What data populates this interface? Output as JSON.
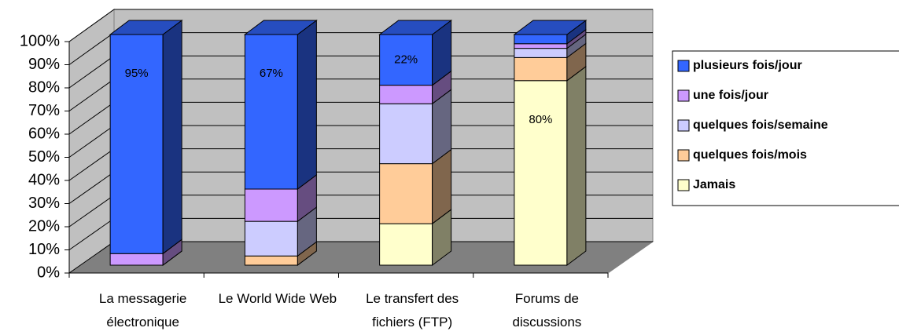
{
  "chart_data": {
    "type": "stacked_bar_3d",
    "categories": [
      "La messagerie électronique",
      "Le World Wide Web",
      "Le transfert des fichiers (FTP)",
      "Forums de discussions"
    ],
    "series": [
      {
        "name": "Jamais",
        "color": "#ffffcc",
        "values": [
          0,
          0,
          18,
          80
        ],
        "value_labels": [
          null,
          null,
          null,
          "80%"
        ]
      },
      {
        "name": "quelques fois/mois",
        "color": "#ffcc99",
        "values": [
          0,
          4,
          26,
          10
        ]
      },
      {
        "name": "quelques fois/semaine",
        "color": "#ccccff",
        "values": [
          0,
          15,
          26,
          4
        ]
      },
      {
        "name": "une fois/jour",
        "color": "#cc99ff",
        "values": [
          5,
          14,
          8,
          2
        ]
      },
      {
        "name": "plusieurs fois/jour",
        "color": "#3366ff",
        "values": [
          95,
          67,
          22,
          4
        ],
        "value_labels": [
          "95%",
          "67%",
          "22%",
          null
        ]
      }
    ],
    "ylim": [
      0,
      100
    ],
    "yticks": [
      {
        "value": 0,
        "label": "0%"
      },
      {
        "value": 10,
        "label": "10%"
      },
      {
        "value": 20,
        "label": "20%"
      },
      {
        "value": 30,
        "label": "30%"
      },
      {
        "value": 40,
        "label": "40%"
      },
      {
        "value": 50,
        "label": "50%"
      },
      {
        "value": 60,
        "label": "60%"
      },
      {
        "value": 70,
        "label": "70%"
      },
      {
        "value": 80,
        "label": "80%"
      },
      {
        "value": 90,
        "label": "90%"
      },
      {
        "value": 100,
        "label": "100%"
      }
    ],
    "grid": true,
    "legend": "right"
  }
}
